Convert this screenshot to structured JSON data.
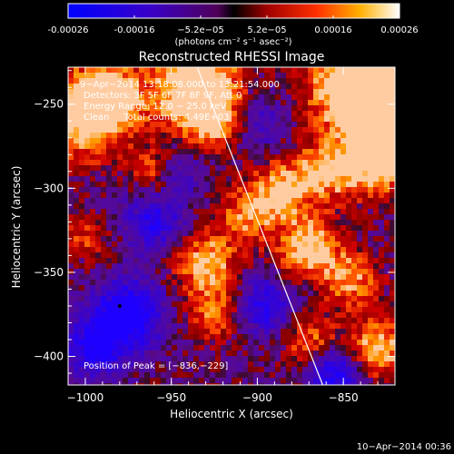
{
  "chart_data": {
    "type": "heatmap",
    "title": "Reconstructed RHESSI Image",
    "xlabel": "Heliocentric X (arcsec)",
    "ylabel": "Heliocentric Y (arcsec)",
    "xlim": [
      -1010,
      -820
    ],
    "ylim": [
      -417,
      -228
    ],
    "xticks": [
      -1000,
      -950,
      -900,
      -850
    ],
    "yticks": [
      -250,
      -300,
      -350,
      -400
    ],
    "colorbar": {
      "range": [
        -0.00026,
        0.00026
      ],
      "ticks": [
        "-0.00026",
        "-0.00016",
        "−5.2e−05",
        "5.2e−05",
        "0.00016",
        "0.00026"
      ],
      "unit_label": "(photons cm⁻² s⁻¹ asec⁻²)"
    },
    "annotations": {
      "time": "9−Apr−2014 13:18:08.000 to 13:21:54.000",
      "detectors": "Detectors: 3F 5F 6F 7F 8F 9F, Att 0",
      "energy": "Energy Range: 12.0 − 25.0 keV",
      "clean": "Clean     Total counts: 4.49E+03",
      "peak": "Position of Peak = [−836,−229]"
    },
    "limb_line": {
      "x": [
        -935,
        -862
      ],
      "y": [
        -228,
        -417
      ]
    },
    "peak_position": [
      -836,
      -229
    ],
    "footer_timestamp": "10−Apr−2014 00:36",
    "colors": {
      "background": "#000000",
      "text": "#ffffff"
    }
  }
}
